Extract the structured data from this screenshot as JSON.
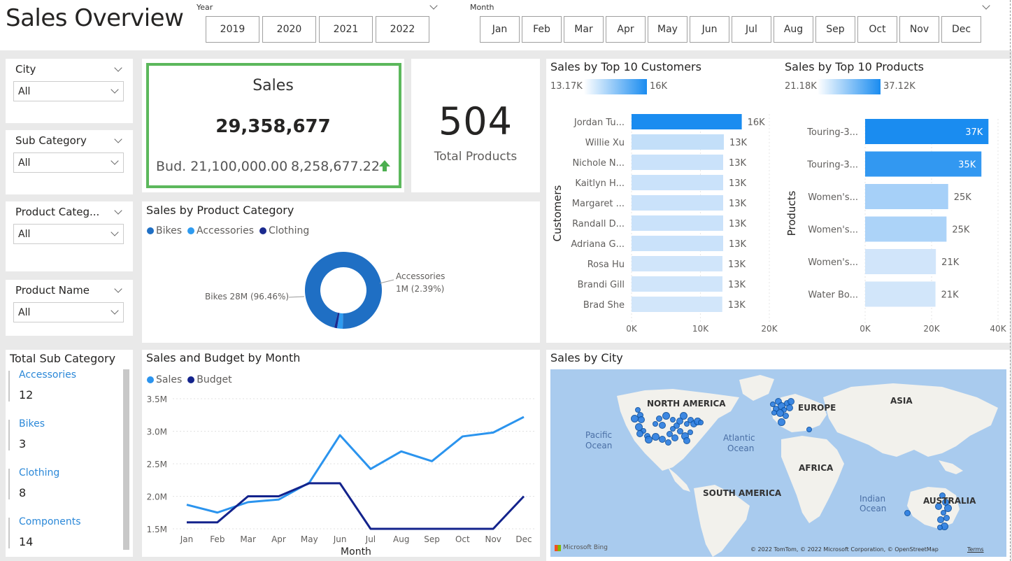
{
  "header": {
    "title": "Sales Overview",
    "year_label": "Year",
    "years": [
      "2019",
      "2020",
      "2021",
      "2022"
    ],
    "month_label": "Month",
    "months": [
      "Jan",
      "Feb",
      "Mar",
      "Apr",
      "May",
      "Jun",
      "Jul",
      "Aug",
      "Sep",
      "Oct",
      "Nov",
      "Dec"
    ]
  },
  "filters": [
    {
      "label": "City",
      "value": "All"
    },
    {
      "label": "Sub Category",
      "value": "All"
    },
    {
      "label": "Product Categ...",
      "value": "All"
    },
    {
      "label": "Product Name",
      "value": "All"
    }
  ],
  "kpi": {
    "title": "Sales",
    "value": "29,358,677",
    "budget": "Bud. 21,100,000.00",
    "variance": "8,258,677.22",
    "border_color": "#5cb85c",
    "arrow_color": "#4caf50"
  },
  "total_products": {
    "value": "504",
    "label": "Total Products"
  },
  "category_chart": {
    "title": "Sales by Product Category",
    "legend": [
      {
        "name": "Bikes",
        "color": "#1f6fc4"
      },
      {
        "name": "Accessories",
        "color": "#2e9bf0"
      },
      {
        "name": "Clothing",
        "color": "#1a2a8f"
      }
    ],
    "label_bikes": "Bikes 28M (96.46%)",
    "label_acc_1": "Accessories",
    "label_acc_2": "1M (2.39%)"
  },
  "customers_chart": {
    "title": "Sales by Top 10 Customers",
    "scale_min": "13.17K",
    "scale_max": "16K",
    "axis_title": "Customers",
    "ticks": [
      "0K",
      "10K",
      "20K"
    ]
  },
  "products_chart": {
    "title": "Sales by Top 10 Products",
    "scale_min": "21.18K",
    "scale_max": "37.12K",
    "axis_title": "Products",
    "ticks": [
      "0K",
      "20K",
      "40K"
    ]
  },
  "sub_category": {
    "title": "Total Sub Category",
    "items": [
      {
        "label": "Accessories",
        "value": "12"
      },
      {
        "label": "Bikes",
        "value": "3"
      },
      {
        "label": "Clothing",
        "value": "8"
      },
      {
        "label": "Components",
        "value": "14"
      }
    ]
  },
  "line_chart": {
    "title": "Sales and Budget by Month",
    "legend": [
      {
        "name": "Sales",
        "color": "#2b94ee"
      },
      {
        "name": "Budget",
        "color": "#13238c"
      }
    ],
    "xlabel": "Month"
  },
  "map": {
    "title": "Sales by City",
    "labels": {
      "north_america": "NORTH AMERICA",
      "europe": "EUROPE",
      "asia": "ASIA",
      "africa": "AFRICA",
      "south_america": "SOUTH AMERICA",
      "australia": "AUSTRALIA",
      "pacific_1": "Pacific",
      "pacific_2": "Ocean",
      "atlantic_1": "Atlantic",
      "atlantic_2": "Ocean",
      "indian_1": "Indian",
      "indian_2": "Ocean"
    },
    "bing": "Microsoft Bing",
    "attribution": "© 2022 TomTom, © 2022 Microsoft Corporation, © OpenStreetMap",
    "terms": "Terms"
  },
  "chart_data": [
    {
      "type": "bar",
      "title": "Sales by Top 10 Customers",
      "ylabel": "Customers",
      "categories": [
        "Jordan Tu...",
        "Willie Xu",
        "Nichole N...",
        "Kaitlyn H...",
        "Margaret ...",
        "Randall D...",
        "Adriana G...",
        "Rosa Hu",
        "Brandi Gill",
        "Brad She"
      ],
      "values": [
        16000,
        13400,
        13300,
        13300,
        13300,
        13300,
        13300,
        13200,
        13200,
        13170
      ],
      "data_labels": [
        "16K",
        "13K",
        "13K",
        "13K",
        "13K",
        "13K",
        "13K",
        "13K",
        "13K",
        "13K"
      ],
      "xlim": [
        0,
        20000
      ],
      "ticks": [
        "0K",
        "10K",
        "20K"
      ]
    },
    {
      "type": "bar",
      "title": "Sales by Top 10 Products",
      "ylabel": "Products",
      "categories": [
        "Touring-3...",
        "Touring-3...",
        "Women's...",
        "Women's...",
        "Women's...",
        "Water Bo..."
      ],
      "values": [
        37120,
        35000,
        25000,
        24500,
        21300,
        21180
      ],
      "data_labels": [
        "37K",
        "35K",
        "25K",
        "25K",
        "21K",
        "21K"
      ],
      "xlim": [
        0,
        40000
      ],
      "ticks": [
        "0K",
        "20K",
        "40K"
      ]
    },
    {
      "type": "pie",
      "title": "Sales by Product Category",
      "categories": [
        "Bikes",
        "Accessories",
        "Clothing"
      ],
      "values": [
        96.46,
        2.39,
        1.15
      ]
    },
    {
      "type": "line",
      "title": "Sales and Budget by Month",
      "xlabel": "Month",
      "categories": [
        "Jan",
        "Feb",
        "Mar",
        "Apr",
        "May",
        "Jun",
        "Jul",
        "Aug",
        "Sep",
        "Oct",
        "Nov",
        "Dec"
      ],
      "series": [
        {
          "name": "Sales",
          "values": [
            1.87,
            1.75,
            1.91,
            1.95,
            2.21,
            2.94,
            2.42,
            2.69,
            2.54,
            2.92,
            2.98,
            3.22
          ]
        },
        {
          "name": "Budget",
          "values": [
            1.6,
            1.6,
            2.0,
            2.0,
            2.2,
            2.2,
            1.5,
            1.5,
            1.5,
            1.5,
            1.5,
            2.0
          ]
        }
      ],
      "ylim": [
        1.5,
        3.6
      ],
      "yticks": [
        "1.5M",
        "2.0M",
        "2.5M",
        "3.0M",
        "3.5M"
      ]
    }
  ]
}
